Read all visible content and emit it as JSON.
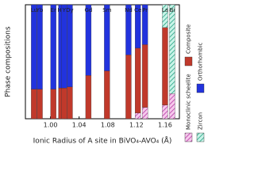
{
  "chart_data": {
    "type": "stacked-bar",
    "x_label": "Ionic Radius of A site in BiVO₄-AVO₄ (Å)",
    "y_label": "Phase compositions",
    "categories": [
      "Lu",
      "Yb",
      "Er",
      "Ho",
      "Y",
      "Dy",
      "Gd",
      "Sm",
      "Nd",
      "Ce",
      "Pr",
      "La",
      "Bi"
    ],
    "x": [
      0.977,
      0.985,
      1.004,
      1.015,
      1.019,
      1.027,
      1.053,
      1.079,
      1.109,
      1.122,
      1.132,
      1.16,
      1.17
    ],
    "xlim": [
      0.965,
      1.18
    ],
    "xticks": [
      {
        "value": 1.0,
        "label": "1.00"
      },
      1.04,
      1.08,
      1.12,
      1.16
    ],
    "ylim": [
      0,
      1
    ],
    "series": [
      {
        "name": "Monoclinic scheelite",
        "color": "#e060c0",
        "values": [
          0,
          0,
          0,
          0,
          0,
          0,
          0,
          0,
          0,
          0.05,
          0.1,
          0.12,
          0.22
        ]
      },
      {
        "name": "Composite",
        "color": "#c0392b",
        "values": [
          0.26,
          0.26,
          0.26,
          0.27,
          0.27,
          0.28,
          0.38,
          0.42,
          0.56,
          0.57,
          0.55,
          0.68,
          0
        ]
      },
      {
        "name": "Zircon",
        "color": "#2ec4a0",
        "values": [
          0,
          0,
          0,
          0,
          0,
          0,
          0,
          0,
          0,
          0,
          0,
          0.2,
          0.78
        ]
      },
      {
        "name": "Orthorhombic",
        "color": "#2233dd",
        "values": [
          0.74,
          0.74,
          0.74,
          0.73,
          0.73,
          0.72,
          0.62,
          0.58,
          0.44,
          0.38,
          0.35,
          0,
          0
        ]
      }
    ]
  }
}
